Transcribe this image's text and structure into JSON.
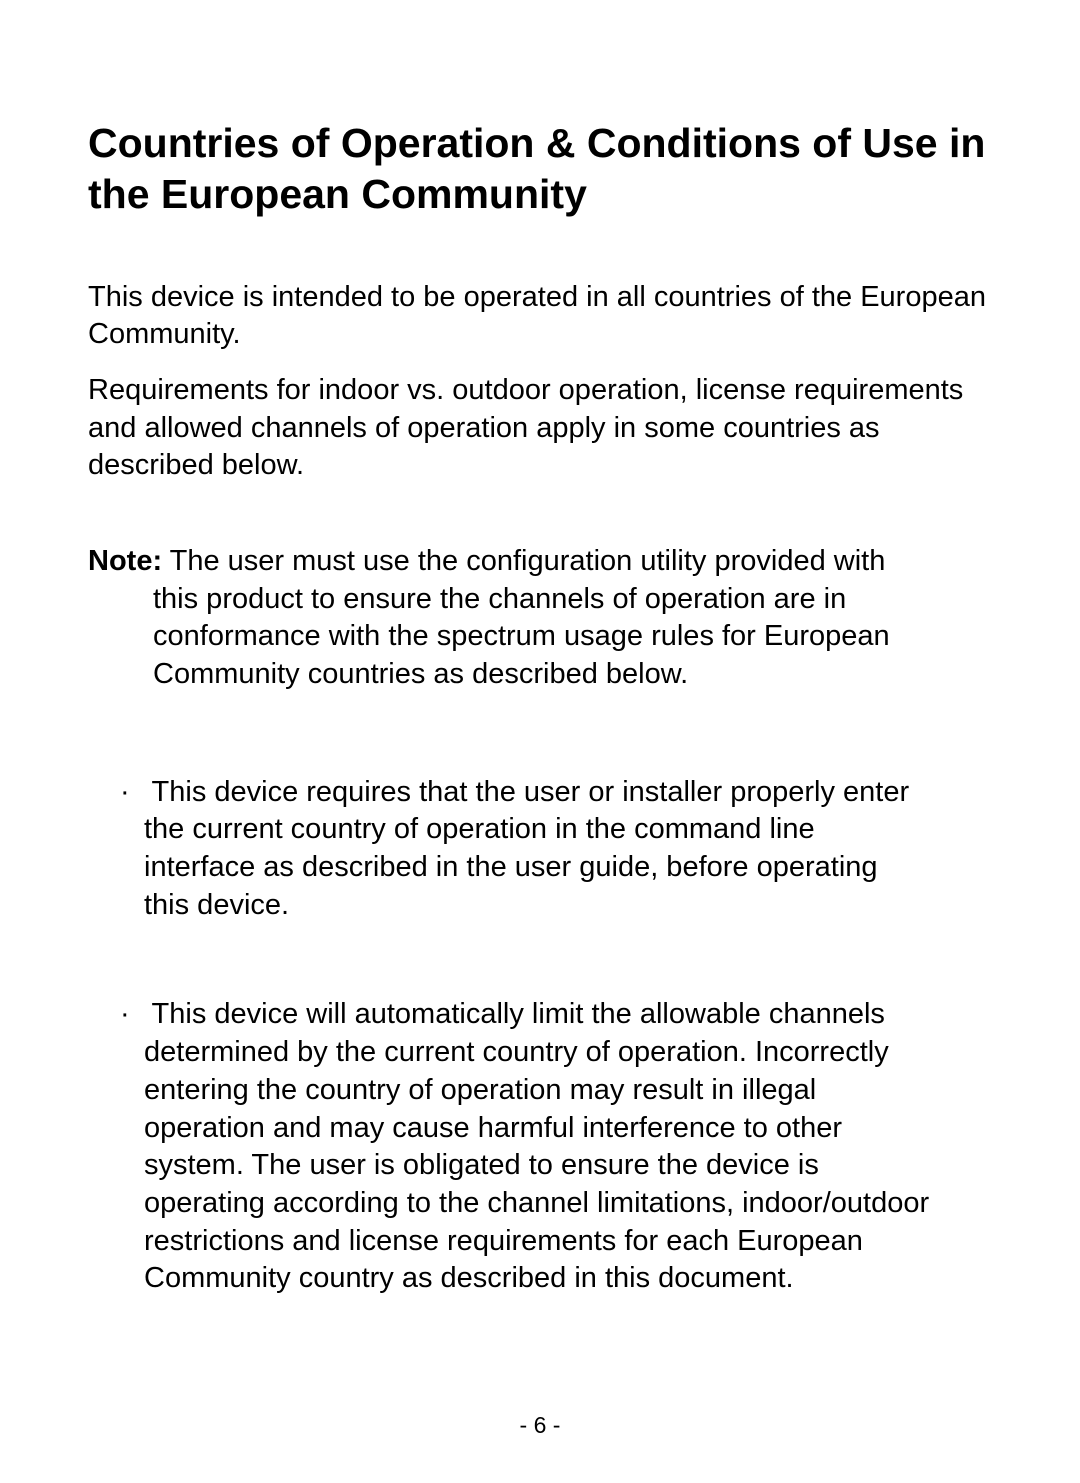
{
  "heading": "Countries of Operation & Conditions of Use in the European Community",
  "para1": "This device is intended to be operated in all countries of the European Community.",
  "para2": "Requirements for indoor vs. outdoor operation, license requirements and allowed channels of operation apply in some countries as described below.",
  "note": {
    "label": "Note:",
    "line1_rest": " The user must use the configuration utility provided with",
    "line2": "this product to ensure the channels of operation are in",
    "line3": "conformance with the spectrum usage rules for European",
    "line4": "Community countries as described below."
  },
  "bullet1": {
    "marker": "·",
    "line1_rest": " This device requires that the user or installer properly enter",
    "line2": "the current country of operation in the command line",
    "line3": "interface as described in the user guide, before operating",
    "line4": "this device."
  },
  "bullet2": {
    "marker": "·",
    "line1_rest": " This device will automatically limit the allowable channels",
    "line2": "determined by the current country of operation. Incorrectly",
    "line3": "entering the country of operation may result in illegal",
    "line4": "operation and may cause harmful interference to other",
    "line5": "system. The user is obligated to ensure the device is",
    "line6": "operating according to the channel limitations, indoor/outdoor",
    "line7": "restrictions and license requirements for each European",
    "line8": "Community country as described in this document."
  },
  "pageNumber": "- 6 -"
}
